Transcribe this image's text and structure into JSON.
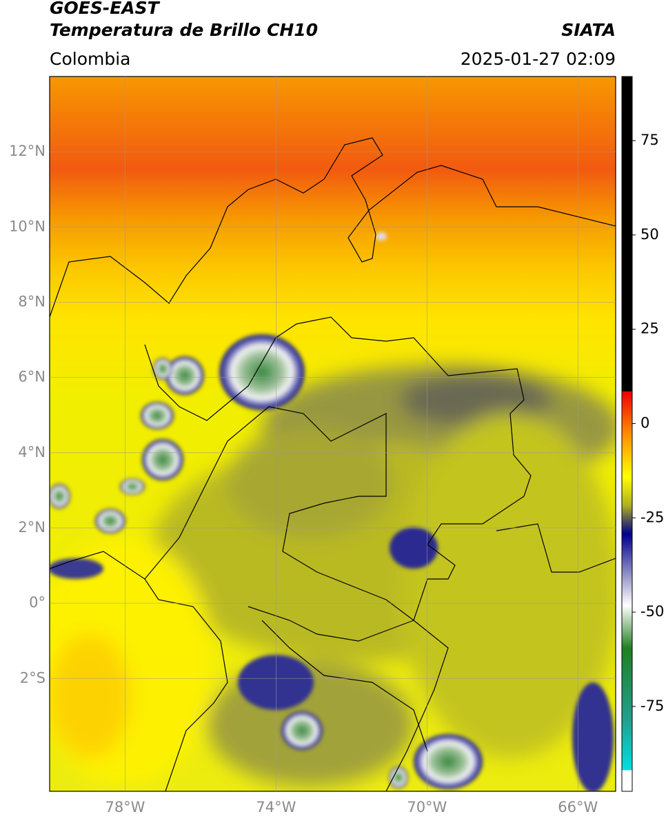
{
  "header": {
    "satellite": "GOES-EAST",
    "product": "Temperatura de Brillo CH10",
    "source": "SIATA",
    "region": "Colombia",
    "datetime": "2025-01-27 02:09"
  },
  "map": {
    "xlim": [
      -80,
      -65
    ],
    "ylim": [
      -5,
      14
    ],
    "lat_ticks": [
      {
        "value": 12,
        "label": "12°N"
      },
      {
        "value": 10,
        "label": "10°N"
      },
      {
        "value": 8,
        "label": "8°N"
      },
      {
        "value": 6,
        "label": "6°N"
      },
      {
        "value": 4,
        "label": "4°N"
      },
      {
        "value": 2,
        "label": "2°N"
      },
      {
        "value": 0,
        "label": "0°"
      },
      {
        "value": -2,
        "label": "2°S"
      }
    ],
    "lon_ticks": [
      {
        "value": -78,
        "label": "78°W"
      },
      {
        "value": -74,
        "label": "74°W"
      },
      {
        "value": -70,
        "label": "70°W"
      },
      {
        "value": -66,
        "label": "66°W"
      }
    ],
    "grid": true
  },
  "colorbar": {
    "lim": [
      -97.5,
      92
    ],
    "ticks": [
      75,
      50,
      25,
      0,
      -25,
      -50,
      -75
    ]
  }
}
